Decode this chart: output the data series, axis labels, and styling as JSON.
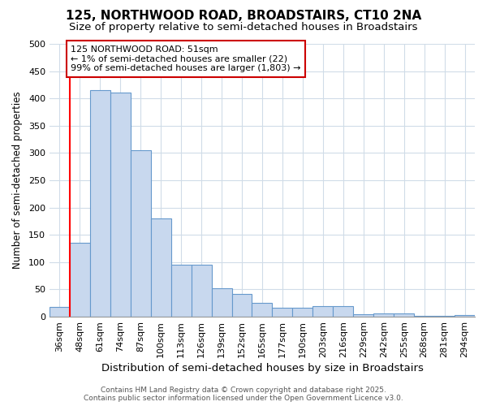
{
  "title1": "125, NORTHWOOD ROAD, BROADSTAIRS, CT10 2NA",
  "title2": "Size of property relative to semi-detached houses in Broadstairs",
  "xlabel": "Distribution of semi-detached houses by size in Broadstairs",
  "ylabel": "Number of semi-detached properties",
  "categories": [
    "36sqm",
    "48sqm",
    "61sqm",
    "74sqm",
    "87sqm",
    "100sqm",
    "113sqm",
    "126sqm",
    "139sqm",
    "152sqm",
    "165sqm",
    "177sqm",
    "190sqm",
    "203sqm",
    "216sqm",
    "229sqm",
    "242sqm",
    "255sqm",
    "268sqm",
    "281sqm",
    "294sqm"
  ],
  "values": [
    18,
    135,
    415,
    410,
    305,
    180,
    95,
    95,
    52,
    42,
    26,
    17,
    17,
    20,
    20,
    5,
    6,
    6,
    2,
    2,
    3
  ],
  "bar_color": "#c8d8ee",
  "bar_edge_color": "#6699cc",
  "annotation_text": "125 NORTHWOOD ROAD: 51sqm\n← 1% of semi-detached houses are smaller (22)\n99% of semi-detached houses are larger (1,803) →",
  "annotation_box_color": "#ffffff",
  "annotation_box_edge_color": "#cc0000",
  "ylim": [
    0,
    500
  ],
  "yticks": [
    0,
    50,
    100,
    150,
    200,
    250,
    300,
    350,
    400,
    450,
    500
  ],
  "background_color": "#ffffff",
  "grid_color": "#d0dce8",
  "footer": "Contains HM Land Registry data © Crown copyright and database right 2025.\nContains public sector information licensed under the Open Government Licence v3.0.",
  "title_fontsize": 11,
  "subtitle_fontsize": 9.5,
  "xlabel_fontsize": 9.5,
  "ylabel_fontsize": 8.5,
  "tick_fontsize": 8,
  "annotation_fontsize": 8,
  "footer_fontsize": 6.5
}
